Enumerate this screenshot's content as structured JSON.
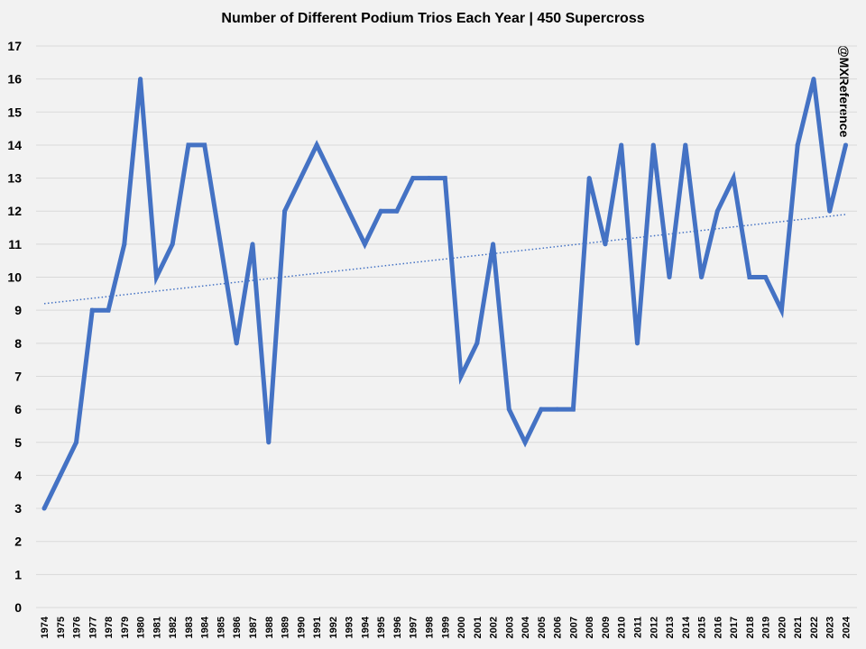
{
  "chart_data": {
    "type": "line",
    "title": "Number of Different Podium Trios Each Year | 450 Supercross",
    "xlabel": "",
    "ylabel": "",
    "ylim": [
      0,
      17
    ],
    "grid": true,
    "legend": "none",
    "categories": [
      "1974",
      "1975",
      "1976",
      "1977",
      "1978",
      "1979",
      "1980",
      "1981",
      "1982",
      "1983",
      "1984",
      "1985",
      "1986",
      "1987",
      "1988",
      "1989",
      "1990",
      "1991",
      "1992",
      "1993",
      "1994",
      "1995",
      "1996",
      "1997",
      "1998",
      "1999",
      "2000",
      "2001",
      "2002",
      "2003",
      "2004",
      "2005",
      "2006",
      "2007",
      "2008",
      "2009",
      "2010",
      "2011",
      "2012",
      "2013",
      "2014",
      "2015",
      "2016",
      "2017",
      "2018",
      "2019",
      "2020",
      "2021",
      "2022",
      "2023",
      "2024"
    ],
    "series": [
      {
        "values": [
          3,
          4,
          5,
          9,
          9,
          11,
          16,
          10,
          11,
          14,
          14,
          11,
          8,
          11,
          5,
          12,
          13,
          14,
          13,
          12,
          11,
          12,
          12,
          13,
          13,
          13,
          7,
          8,
          11,
          6,
          5,
          6,
          6,
          6,
          13,
          11,
          14,
          8,
          14,
          10,
          14,
          10,
          12,
          13,
          10,
          10,
          9,
          14,
          16,
          12,
          14
        ],
        "color": "#4472c4"
      }
    ],
    "trendline": {
      "type": "linear",
      "start": 9.2,
      "end": 11.9,
      "style": "dotted",
      "color": "#4472c4"
    },
    "yticks": [
      "0",
      "1",
      "2",
      "3",
      "4",
      "5",
      "6",
      "7",
      "8",
      "9",
      "10",
      "11",
      "12",
      "13",
      "14",
      "15",
      "16",
      "17"
    ]
  },
  "watermark": "@MXReference"
}
